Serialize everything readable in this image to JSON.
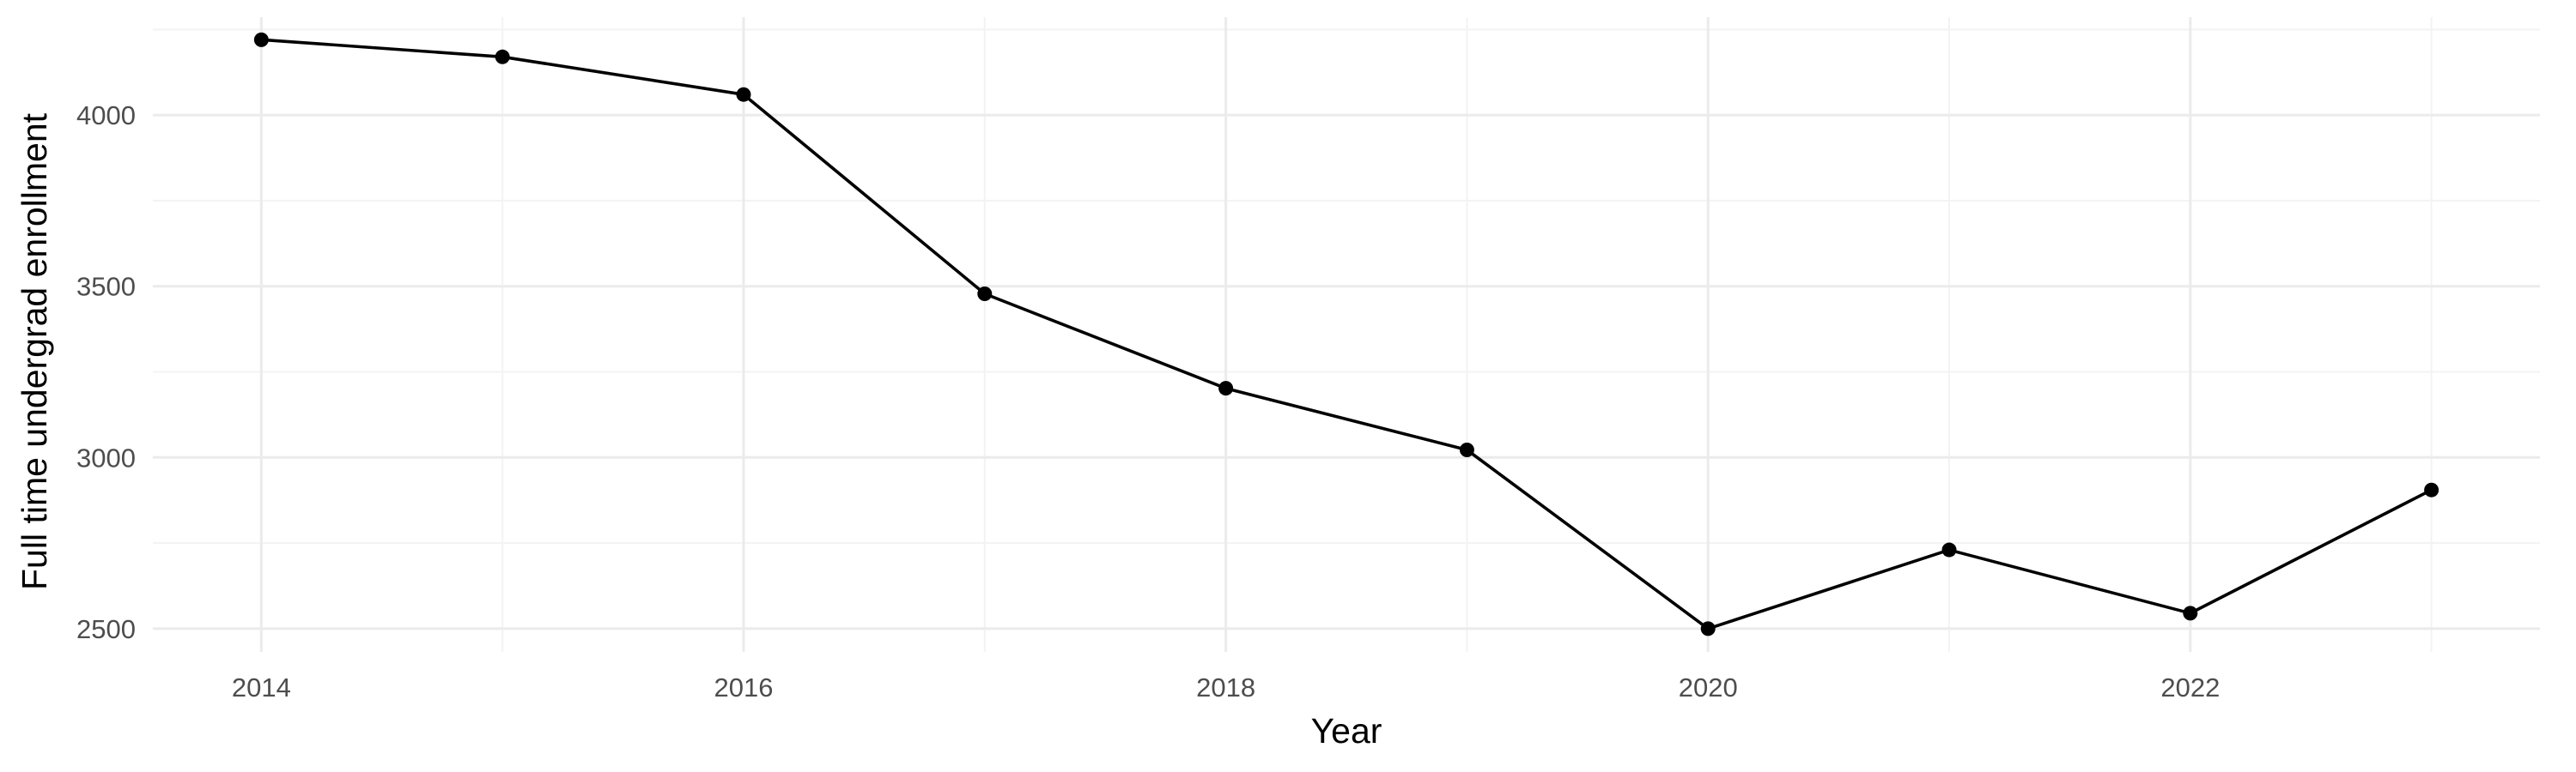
{
  "chart_data": {
    "type": "line",
    "title": "",
    "xlabel": "Year",
    "ylabel": "Full time undergrad enrollment",
    "x": [
      2014,
      2015,
      2016,
      2017,
      2018,
      2019,
      2020,
      2021,
      2022,
      2023
    ],
    "series": [
      {
        "values": [
          4220,
          4170,
          4060,
          3478,
          3202,
          3022,
          2500,
          2730,
          2545,
          2905
        ]
      }
    ],
    "xlim": [
      2013.55,
      2023.45
    ],
    "ylim": [
      2432,
      4286
    ],
    "xticks": [
      2014,
      2016,
      2018,
      2020,
      2022
    ],
    "xtick_labels": [
      "2014",
      "2016",
      "2018",
      "2020",
      "2022"
    ],
    "yticks": [
      2500,
      3000,
      3500,
      4000
    ],
    "ytick_labels": [
      "2500",
      "3000",
      "3500",
      "4000"
    ],
    "x_minor_ticks": [
      2015,
      2017,
      2019,
      2021,
      2023
    ],
    "y_minor_ticks": [
      2750,
      3250,
      3750,
      4250
    ],
    "grid": true,
    "legend": "none",
    "line_color": "#000000",
    "point_color": "#000000",
    "grid_color": "#ebebeb"
  }
}
